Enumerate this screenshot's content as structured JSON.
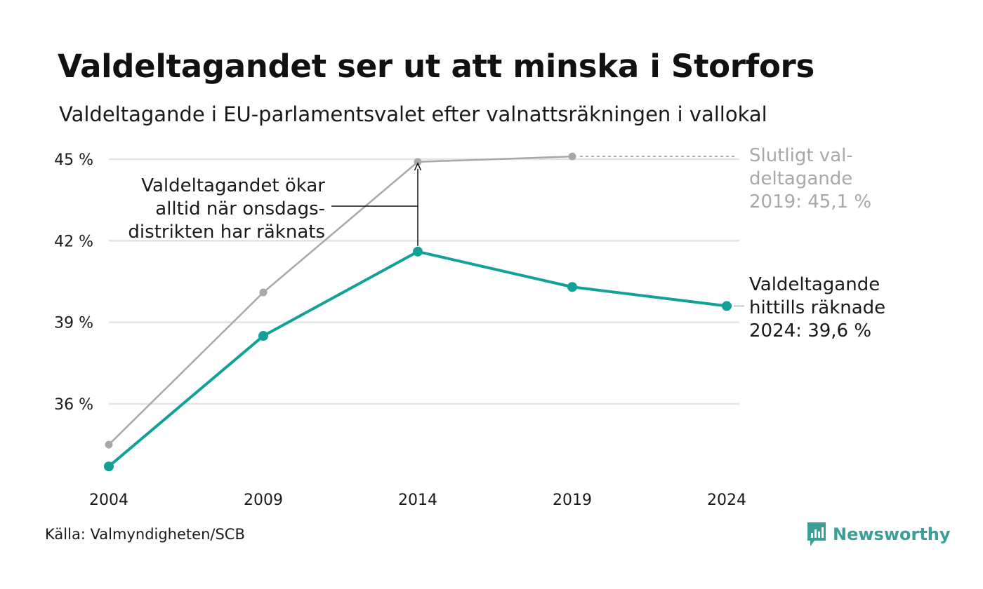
{
  "header": {
    "title": "Valdeltagandet ser ut att minska i Storfors",
    "subtitle": "Valdeltagande i EU-parlamentsvalet efter valnattsräkningen i vallokal"
  },
  "footer": {
    "source": "Källa: Valmyndigheten/SCB",
    "brand": "Newsworthy"
  },
  "colors": {
    "final": "#a8a8a8",
    "counted": "#13a197",
    "grid": "#e3e3e3",
    "text": "#1a1a1a",
    "brand": "#3b9f97"
  },
  "chart_data": {
    "type": "line",
    "title": "Valdeltagandet ser ut att minska i Storfors",
    "subtitle": "Valdeltagande i EU-parlamentsvalet efter valnattsräkningen i vallokal",
    "xlabel": "",
    "ylabel": "",
    "x": [
      2004,
      2009,
      2014,
      2019,
      2024
    ],
    "y_ticks": [
      36,
      39,
      42,
      45
    ],
    "y_tick_labels": [
      "36 %",
      "39 %",
      "42 %",
      "45 %"
    ],
    "ylim": [
      33.0,
      46.0
    ],
    "xlim": [
      2004,
      2024
    ],
    "grid": true,
    "legend": "none",
    "series": [
      {
        "key": "final",
        "values": [
          34.5,
          40.1,
          44.9,
          45.1,
          null
        ]
      },
      {
        "key": "counted",
        "values": [
          33.7,
          38.5,
          41.6,
          40.3,
          39.6
        ]
      }
    ],
    "annotations": {
      "final_end": [
        "Slutligt val-",
        "deltagande",
        "2019: 45,1 %"
      ],
      "counted_end": [
        "Valdeltagande",
        "hittills räknade",
        "2024: 39,6 %"
      ],
      "gap_note": [
        "Valdeltagandet ökar",
        "alltid när onsdags-",
        "distrikten har räknats"
      ]
    }
  }
}
